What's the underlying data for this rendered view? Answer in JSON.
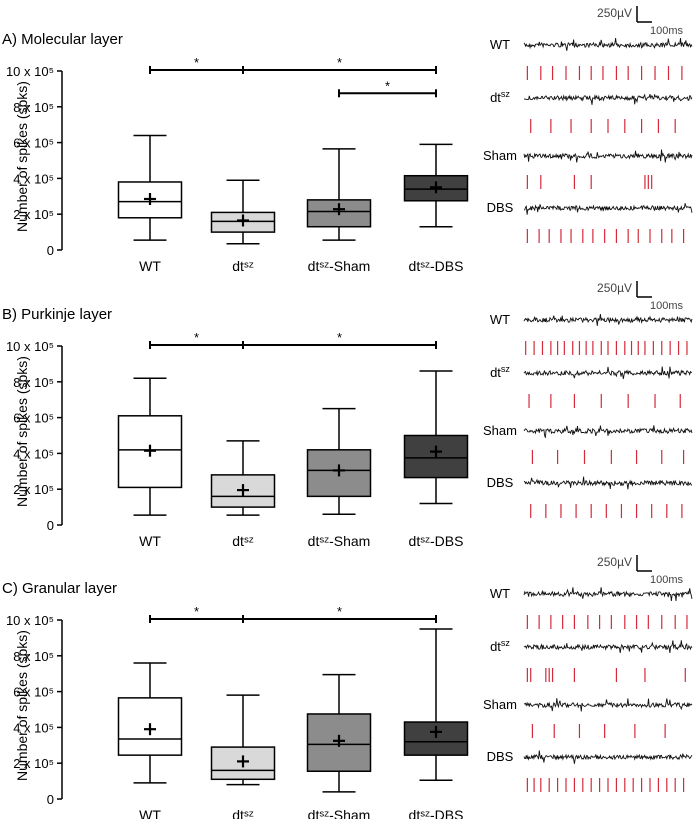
{
  "panels": [
    {
      "title": "A) Molecular layer",
      "trace_labels": [
        "WT",
        "dt",
        "Sham",
        "DBS"
      ],
      "scalebar": {
        "v": "250µV",
        "t": "100ms"
      },
      "spike_marks": [
        [
          0.02,
          0.1,
          0.17,
          0.25,
          0.33,
          0.4,
          0.47,
          0.55,
          0.62,
          0.7,
          0.78,
          0.86,
          0.94
        ],
        [
          0.04,
          0.16,
          0.28,
          0.4,
          0.5,
          0.6,
          0.7,
          0.8,
          0.9
        ],
        [
          0.02,
          0.1,
          0.3,
          0.4,
          0.72,
          0.74,
          0.76
        ],
        [
          0.02,
          0.09,
          0.15,
          0.22,
          0.28,
          0.35,
          0.41,
          0.48,
          0.55,
          0.62,
          0.68,
          0.75,
          0.82,
          0.88,
          0.95
        ]
      ]
    },
    {
      "title": "B) Purkinje layer",
      "trace_labels": [
        "WT",
        "dt",
        "Sham",
        "DBS"
      ],
      "scalebar": {
        "v": "250µV",
        "t": "100ms"
      },
      "spike_marks": [
        [
          0.01,
          0.06,
          0.11,
          0.16,
          0.2,
          0.24,
          0.29,
          0.33,
          0.37,
          0.41,
          0.46,
          0.5,
          0.55,
          0.6,
          0.64,
          0.68,
          0.72,
          0.77,
          0.82,
          0.87,
          0.92,
          0.97
        ],
        [
          0.03,
          0.16,
          0.3,
          0.46,
          0.62,
          0.78,
          0.93
        ],
        [
          0.05,
          0.2,
          0.36,
          0.52,
          0.67,
          0.82,
          0.95
        ],
        [
          0.04,
          0.13,
          0.22,
          0.31,
          0.4,
          0.49,
          0.58,
          0.67,
          0.76,
          0.85,
          0.94
        ]
      ]
    },
    {
      "title": "C) Granular layer",
      "trace_labels": [
        "WT",
        "dt",
        "Sham",
        "DBS"
      ],
      "scalebar": {
        "v": "250µV",
        "t": "100ms"
      },
      "spike_marks": [
        [
          0.02,
          0.09,
          0.16,
          0.23,
          0.3,
          0.38,
          0.45,
          0.52,
          0.6,
          0.67,
          0.74,
          0.82,
          0.9,
          0.97
        ],
        [
          0.02,
          0.04,
          0.13,
          0.15,
          0.17,
          0.3,
          0.55,
          0.72,
          0.96
        ],
        [
          0.05,
          0.18,
          0.33,
          0.48,
          0.66,
          0.84
        ],
        [
          0.02,
          0.06,
          0.1,
          0.15,
          0.2,
          0.25,
          0.3,
          0.35,
          0.4,
          0.45,
          0.5,
          0.55,
          0.6,
          0.65,
          0.7,
          0.75,
          0.8,
          0.85,
          0.9,
          0.95
        ]
      ]
    }
  ],
  "chart_data": [
    {
      "type": "box",
      "title": "A) Molecular layer",
      "ylabel": "Number of spikes (spks)",
      "yticks": [
        "0",
        "2 x 10⁵",
        "4 x 10⁵",
        "6 x 10⁵",
        "8 x 10⁵",
        "10 x 10⁵"
      ],
      "ylim": [
        0,
        1000000
      ],
      "categories": [
        "WT",
        "dtˢᶻ",
        "dtˢᶻ-Sham",
        "dtˢᶻ-DBS"
      ],
      "colors": [
        "#ffffff",
        "#d9d9d9",
        "#8c8c8c",
        "#404040"
      ],
      "boxes": [
        {
          "min": 55000,
          "q1": 180000,
          "median": 270000,
          "q3": 380000,
          "max": 640000,
          "mean": 285000
        },
        {
          "min": 35000,
          "q1": 100000,
          "median": 160000,
          "q3": 210000,
          "max": 390000,
          "mean": 165000
        },
        {
          "min": 55000,
          "q1": 130000,
          "median": 215000,
          "q3": 280000,
          "max": 565000,
          "mean": 228000
        },
        {
          "min": 130000,
          "q1": 275000,
          "median": 340000,
          "q3": 415000,
          "max": 590000,
          "mean": 350000
        }
      ],
      "significance": [
        {
          "from": 0,
          "to": 1,
          "y": 1000000,
          "label": "*"
        },
        {
          "from": 1,
          "to": 3,
          "y": 1000000,
          "label": "*"
        },
        {
          "from": 2,
          "to": 3,
          "y": 870000,
          "label": "*"
        }
      ]
    },
    {
      "type": "box",
      "title": "B) Purkinje layer",
      "ylabel": "Number of spikes (spks)",
      "yticks": [
        "0",
        "2 x 10⁵",
        "4 x 10⁵",
        "6 x 10⁵",
        "8 x 10⁵",
        "10 x 10⁵"
      ],
      "ylim": [
        0,
        1000000
      ],
      "categories": [
        "WT",
        "dtˢᶻ",
        "dtˢᶻ-Sham",
        "dtˢᶻ-DBS"
      ],
      "colors": [
        "#ffffff",
        "#d9d9d9",
        "#8c8c8c",
        "#404040"
      ],
      "boxes": [
        {
          "min": 55000,
          "q1": 210000,
          "median": 420000,
          "q3": 610000,
          "max": 820000,
          "mean": 415000
        },
        {
          "min": 55000,
          "q1": 100000,
          "median": 160000,
          "q3": 280000,
          "max": 470000,
          "mean": 195000
        },
        {
          "min": 60000,
          "q1": 160000,
          "median": 305000,
          "q3": 420000,
          "max": 650000,
          "mean": 305000
        },
        {
          "min": 120000,
          "q1": 265000,
          "median": 375000,
          "q3": 500000,
          "max": 860000,
          "mean": 410000
        }
      ],
      "significance": [
        {
          "from": 0,
          "to": 1,
          "y": 1000000,
          "label": "*"
        },
        {
          "from": 1,
          "to": 3,
          "y": 1000000,
          "label": "*"
        }
      ]
    },
    {
      "type": "box",
      "title": "C) Granular layer",
      "ylabel": "Number of spikes (spks)",
      "yticks": [
        "0",
        "2 x 10⁵",
        "4 x 10⁵",
        "6 x 10⁵",
        "8 x 10⁵",
        "10 x 10⁵"
      ],
      "ylim": [
        0,
        1000000
      ],
      "categories": [
        "WT",
        "dtˢᶻ",
        "dtˢᶻ-Sham",
        "dtˢᶻ-DBS"
      ],
      "colors": [
        "#ffffff",
        "#d9d9d9",
        "#8c8c8c",
        "#404040"
      ],
      "boxes": [
        {
          "min": 90000,
          "q1": 245000,
          "median": 335000,
          "q3": 565000,
          "max": 760000,
          "mean": 390000
        },
        {
          "min": 80000,
          "q1": 110000,
          "median": 160000,
          "q3": 290000,
          "max": 580000,
          "mean": 210000
        },
        {
          "min": 40000,
          "q1": 155000,
          "median": 305000,
          "q3": 475000,
          "max": 695000,
          "mean": 325000
        },
        {
          "min": 105000,
          "q1": 245000,
          "median": 320000,
          "q3": 430000,
          "max": 950000,
          "mean": 375000
        }
      ],
      "significance": [
        {
          "from": 0,
          "to": 1,
          "y": 1000000,
          "label": "*"
        },
        {
          "from": 1,
          "to": 3,
          "y": 1000000,
          "label": "*"
        }
      ]
    }
  ]
}
